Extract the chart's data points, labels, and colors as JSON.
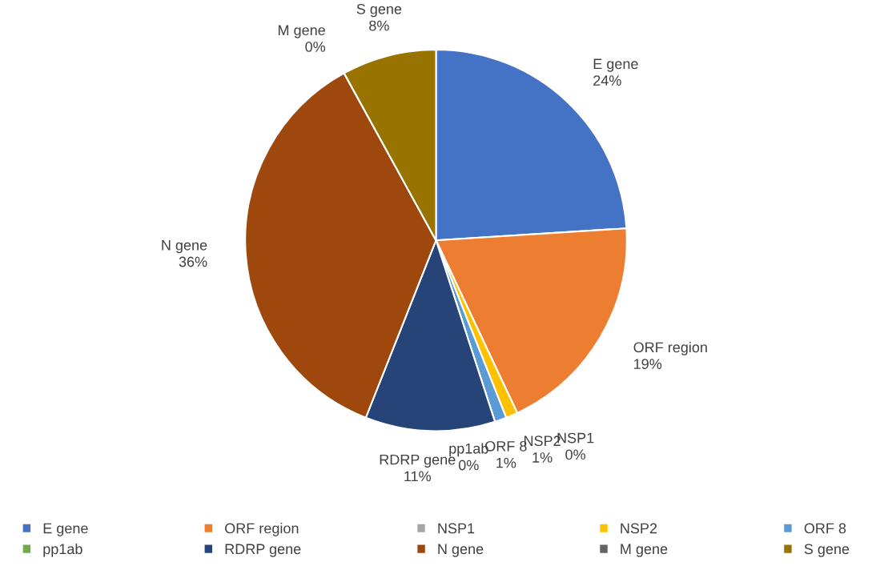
{
  "chart_data": {
    "type": "pie",
    "categories": [
      "E gene",
      "ORF region",
      "NSP1",
      "NSP2",
      "ORF 8",
      "pp1ab",
      "RDRP gene",
      "N gene",
      "M gene",
      "S gene"
    ],
    "values": [
      24,
      19,
      0,
      1,
      1,
      0,
      11,
      36,
      0,
      8
    ],
    "value_labels": [
      "24%",
      "19%",
      "0%",
      "1%",
      "1%",
      "0%",
      "11%",
      "36%",
      "0%",
      "8%"
    ],
    "colors": [
      "#4472c4",
      "#ed7d31",
      "#a5a5a5",
      "#ffc000",
      "#5b9bd5",
      "#70ad47",
      "#264478",
      "#9e480e",
      "#636363",
      "#997300"
    ],
    "legend": "bottom"
  }
}
